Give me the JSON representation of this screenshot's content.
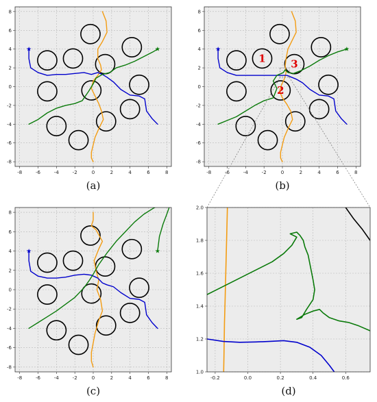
{
  "colors": {
    "orange": "#f39c12",
    "blue": "#0000cc",
    "green": "#0a7a0a",
    "obstacle": "#000000",
    "background": "#ececec",
    "grid": "#b8b8b8",
    "label": "#e00000",
    "zoom": "#808080"
  },
  "chart_data": [
    {
      "type": "line",
      "caption": "(a)",
      "xlim": [
        -8.5,
        8.5
      ],
      "ylim": [
        -8.5,
        8.5
      ],
      "xticks": [
        -8,
        -6,
        -4,
        -2,
        0,
        2,
        4,
        6,
        8
      ],
      "yticks": [
        -8,
        -6,
        -4,
        -2,
        0,
        2,
        4,
        6,
        8
      ],
      "grid": true,
      "obstacles": [
        {
          "x": -5.0,
          "y": 2.8
        },
        {
          "x": -2.2,
          "y": 3.0
        },
        {
          "x": -0.3,
          "y": 5.6
        },
        {
          "x": 1.3,
          "y": 2.4
        },
        {
          "x": 4.2,
          "y": 4.2
        },
        {
          "x": -5.0,
          "y": -0.5
        },
        {
          "x": -0.2,
          "y": -0.4
        },
        {
          "x": 5.0,
          "y": 0.2
        },
        {
          "x": 1.4,
          "y": -3.7
        },
        {
          "x": 4.0,
          "y": -2.4
        },
        {
          "x": -4.0,
          "y": -4.2
        },
        {
          "x": -1.6,
          "y": -5.7
        }
      ],
      "obstacle_radius": 1.05,
      "series": [
        {
          "color": "orange",
          "x": [
            1.0,
            1.4,
            1.5,
            1.0,
            0.5,
            0.5,
            0.8,
            0.9,
            0.5,
            0.0,
            -0.2,
            0.2,
            0.6,
            0.9,
            1.1,
            0.6,
            0.2,
            0.0,
            -0.2,
            -0.2,
            0.0
          ],
          "y": [
            8.0,
            7.0,
            5.8,
            4.8,
            4.0,
            3.0,
            2.3,
            1.8,
            1.2,
            0.6,
            -0.2,
            -1.0,
            -1.8,
            -2.6,
            -3.5,
            -4.5,
            -5.4,
            -6.2,
            -7.0,
            -7.6,
            -8.0
          ]
        },
        {
          "color": "blue",
          "x": [
            -7.0,
            -7.0,
            -6.8,
            -6.0,
            -5.0,
            -4.0,
            -3.0,
            -2.0,
            -1.0,
            -0.2,
            0.5,
            1.0,
            1.5,
            2.2,
            3.0,
            4.0,
            5.0,
            5.6,
            5.8,
            6.4,
            7.0
          ],
          "y": [
            4.0,
            3.0,
            2.0,
            1.5,
            1.2,
            1.3,
            1.3,
            1.4,
            1.5,
            1.3,
            1.5,
            1.3,
            1.0,
            0.5,
            -0.3,
            -0.9,
            -1.0,
            -1.3,
            -2.6,
            -3.4,
            -4.0
          ]
        },
        {
          "color": "green",
          "x": [
            -7.0,
            -6.0,
            -5.0,
            -4.0,
            -3.0,
            -2.0,
            -1.2,
            -0.5,
            0.0,
            0.3,
            1.0,
            1.8,
            2.5,
            3.5,
            4.5,
            5.5,
            6.5,
            7.0
          ],
          "y": [
            -4.0,
            -3.5,
            -2.8,
            -2.3,
            -2.0,
            -1.8,
            -1.5,
            -0.5,
            0.3,
            0.9,
            1.3,
            1.5,
            2.0,
            2.3,
            2.7,
            3.2,
            3.7,
            4.0
          ]
        }
      ],
      "markers": [
        {
          "color": "blue",
          "x": -7.0,
          "y": 4.0,
          "symbol": "star"
        },
        {
          "color": "green",
          "x": 7.0,
          "y": 4.0,
          "symbol": "star"
        }
      ]
    },
    {
      "type": "line",
      "caption": "(b)",
      "xlim": [
        -8.5,
        8.5
      ],
      "ylim": [
        -8.5,
        8.5
      ],
      "xticks": [
        -8,
        -6,
        -4,
        -2,
        0,
        2,
        4,
        6,
        8
      ],
      "yticks": [
        -8,
        -6,
        -4,
        -2,
        0,
        2,
        4,
        6,
        8
      ],
      "grid": true,
      "obstacles": [
        {
          "x": -5.0,
          "y": 2.8
        },
        {
          "x": -2.2,
          "y": 3.0
        },
        {
          "x": -0.3,
          "y": 5.6
        },
        {
          "x": 1.3,
          "y": 2.4
        },
        {
          "x": 4.2,
          "y": 4.2
        },
        {
          "x": -5.0,
          "y": -0.5
        },
        {
          "x": -0.2,
          "y": -0.4
        },
        {
          "x": 5.0,
          "y": 0.2
        },
        {
          "x": 1.4,
          "y": -3.7
        },
        {
          "x": 4.0,
          "y": -2.4
        },
        {
          "x": -4.0,
          "y": -4.2
        },
        {
          "x": -1.6,
          "y": -5.7
        }
      ],
      "obstacle_radius": 1.05,
      "obstacle_labels": [
        {
          "text": "1",
          "x": -2.2,
          "y": 3.0
        },
        {
          "text": "2",
          "x": -0.2,
          "y": -0.4
        },
        {
          "text": "3",
          "x": 1.3,
          "y": 2.4
        }
      ],
      "series": [
        {
          "color": "orange",
          "x": [
            1.0,
            1.4,
            1.5,
            1.0,
            0.6,
            0.4,
            0.3,
            0.4,
            0.2,
            -0.1,
            -0.3,
            0.0,
            0.5,
            0.9,
            1.1,
            0.6,
            0.2,
            0.0,
            -0.2,
            -0.2,
            0.0
          ],
          "y": [
            8.0,
            7.0,
            5.8,
            4.8,
            4.0,
            3.0,
            2.2,
            1.5,
            0.8,
            0.2,
            -0.5,
            -1.2,
            -1.9,
            -2.6,
            -3.5,
            -4.5,
            -5.4,
            -6.2,
            -7.0,
            -7.6,
            -8.0
          ]
        },
        {
          "color": "blue",
          "x": [
            -7.0,
            -7.0,
            -6.8,
            -6.0,
            -5.0,
            -4.0,
            -3.0,
            -2.0,
            -1.0,
            -0.2,
            0.5,
            1.0,
            1.5,
            2.2,
            3.0,
            4.0,
            5.0,
            5.6,
            5.8,
            6.4,
            7.0
          ],
          "y": [
            4.0,
            3.0,
            2.0,
            1.5,
            1.2,
            1.2,
            1.2,
            1.2,
            1.2,
            1.2,
            1.2,
            1.0,
            0.8,
            0.4,
            -0.3,
            -0.9,
            -1.0,
            -1.3,
            -2.6,
            -3.4,
            -4.0
          ]
        },
        {
          "color": "green",
          "x": [
            -7.0,
            -6.0,
            -5.0,
            -4.0,
            -3.0,
            -2.0,
            -1.0,
            -0.6,
            -1.0,
            -0.6,
            0.1,
            0.3,
            0.6,
            1.2,
            2.0,
            3.0,
            4.0,
            5.0,
            6.0,
            7.0
          ],
          "y": [
            -4.0,
            -3.6,
            -3.2,
            -2.6,
            -2.0,
            -1.5,
            -1.2,
            -0.2,
            0.6,
            1.2,
            1.5,
            1.8,
            1.5,
            1.4,
            1.7,
            2.2,
            2.8,
            3.3,
            3.7,
            4.0
          ]
        }
      ],
      "markers": [
        {
          "color": "blue",
          "x": -7.0,
          "y": 4.0,
          "symbol": "star"
        },
        {
          "color": "green",
          "x": 7.0,
          "y": 4.0,
          "symbol": "star"
        }
      ],
      "zoom_region": {
        "x": [
          -0.25,
          0.75
        ],
        "y": [
          1.0,
          2.0
        ]
      }
    },
    {
      "type": "line",
      "caption": "(c)",
      "xlim": [
        -8.5,
        8.5
      ],
      "ylim": [
        -8.5,
        8.5
      ],
      "xticks": [
        -8,
        -6,
        -4,
        -2,
        0,
        2,
        4,
        6,
        8
      ],
      "yticks": [
        -8,
        -6,
        -4,
        -2,
        0,
        2,
        4,
        6,
        8
      ],
      "grid": true,
      "obstacles": [
        {
          "x": -5.0,
          "y": 2.8
        },
        {
          "x": -2.2,
          "y": 3.0
        },
        {
          "x": -0.3,
          "y": 5.6
        },
        {
          "x": 1.3,
          "y": 2.4
        },
        {
          "x": 4.2,
          "y": 4.2
        },
        {
          "x": -5.0,
          "y": -0.5
        },
        {
          "x": -0.2,
          "y": -0.4
        },
        {
          "x": 5.0,
          "y": 0.2
        },
        {
          "x": 1.4,
          "y": -3.7
        },
        {
          "x": 4.0,
          "y": -2.4
        },
        {
          "x": -4.0,
          "y": -4.2
        },
        {
          "x": -1.6,
          "y": -5.7
        }
      ],
      "obstacle_radius": 1.05,
      "series": [
        {
          "color": "orange",
          "x": [
            0.0,
            0.0,
            -0.2,
            0.3,
            1.0,
            0.6,
            0.1,
            0.3,
            0.6,
            0.4,
            0.8,
            1.0,
            0.6,
            0.2,
            0.0,
            -0.2,
            -0.2,
            0.0
          ],
          "y": [
            8.0,
            7.2,
            6.6,
            6.2,
            5.0,
            4.2,
            3.0,
            2.0,
            1.0,
            0.0,
            -1.0,
            -2.2,
            -3.2,
            -4.5,
            -5.5,
            -6.5,
            -7.4,
            -8.0
          ]
        },
        {
          "color": "blue",
          "x": [
            -7.0,
            -7.0,
            -6.8,
            -6.0,
            -5.0,
            -4.0,
            -3.0,
            -2.0,
            -1.0,
            -0.2,
            0.5,
            1.0,
            1.5,
            2.2,
            3.0,
            4.0,
            5.0,
            5.6,
            5.8,
            6.4,
            7.0
          ],
          "y": [
            4.0,
            3.0,
            1.9,
            1.4,
            1.2,
            1.2,
            1.3,
            1.5,
            1.6,
            1.5,
            1.2,
            0.7,
            0.5,
            0.3,
            -0.3,
            -0.9,
            -1.0,
            -1.3,
            -2.6,
            -3.4,
            -4.0
          ]
        },
        {
          "color": "green",
          "x": [
            -7.0,
            -6.0,
            -5.0,
            -4.0,
            -3.0,
            -2.0,
            -1.0,
            -0.4,
            0.0,
            0.6,
            1.5,
            2.5,
            3.5,
            4.5,
            5.5,
            6.5,
            7.5,
            8.5
          ],
          "y": [
            -4.0,
            -3.4,
            -2.8,
            -2.2,
            -1.5,
            -0.8,
            0.2,
            1.0,
            1.6,
            2.6,
            3.8,
            5.0,
            6.0,
            7.0,
            7.8,
            8.4,
            8.9,
            9.3
          ]
        },
        {
          "color": "green",
          "x": [
            7.0,
            7.2,
            7.6,
            8.0,
            8.3,
            8.5
          ],
          "y": [
            4.0,
            5.5,
            6.8,
            7.8,
            8.6,
            9.2
          ]
        }
      ],
      "markers": [
        {
          "color": "blue",
          "x": -7.0,
          "y": 4.0,
          "symbol": "star"
        },
        {
          "color": "green",
          "x": 7.0,
          "y": 4.0,
          "symbol": "star"
        }
      ]
    },
    {
      "type": "line",
      "caption": "(d)",
      "xlim": [
        -0.25,
        0.75
      ],
      "ylim": [
        1.0,
        2.0
      ],
      "xticks": [
        -0.2,
        0.0,
        0.2,
        0.4,
        0.6
      ],
      "xtick_labels": [
        "-0.2",
        "0.0",
        "0.2",
        "0.4",
        "0.6"
      ],
      "yticks": [
        1.0,
        1.2,
        1.4,
        1.6,
        1.8,
        2.0
      ],
      "ytick_labels": [
        "1.0",
        "1.2",
        "1.4",
        "1.6",
        "1.8",
        "2.0"
      ],
      "grid": true,
      "series": [
        {
          "color": "orange",
          "x": [
            -0.125,
            -0.13,
            -0.135,
            -0.14,
            -0.143,
            -0.146,
            -0.148
          ],
          "y": [
            2.0,
            1.8,
            1.6,
            1.4,
            1.3,
            1.1,
            1.0
          ]
        },
        {
          "color": "blue",
          "x": [
            -0.25,
            -0.15,
            -0.05,
            0.05,
            0.15,
            0.22,
            0.3,
            0.38,
            0.45,
            0.5,
            0.53
          ],
          "y": [
            1.2,
            1.185,
            1.18,
            1.182,
            1.186,
            1.19,
            1.18,
            1.15,
            1.1,
            1.04,
            1.0
          ]
        },
        {
          "color": "green",
          "x": [
            -0.25,
            -0.15,
            -0.05,
            0.05,
            0.15,
            0.22,
            0.27,
            0.3,
            0.26,
            0.3,
            0.32,
            0.34,
            0.35,
            0.37,
            0.38,
            0.39,
            0.4,
            0.41,
            0.4,
            0.36,
            0.33,
            0.3,
            0.35,
            0.4,
            0.44,
            0.46,
            0.5,
            0.56,
            0.62,
            0.68,
            0.75
          ],
          "y": [
            1.47,
            1.52,
            1.57,
            1.62,
            1.67,
            1.72,
            1.77,
            1.82,
            1.84,
            1.85,
            1.83,
            1.8,
            1.76,
            1.71,
            1.66,
            1.61,
            1.56,
            1.5,
            1.44,
            1.38,
            1.33,
            1.32,
            1.35,
            1.37,
            1.38,
            1.36,
            1.33,
            1.31,
            1.3,
            1.28,
            1.25
          ]
        },
        {
          "color": "obstacle",
          "x": [
            0.6,
            0.65,
            0.7,
            0.75
          ],
          "y": [
            2.0,
            1.93,
            1.87,
            1.8
          ]
        }
      ]
    }
  ]
}
